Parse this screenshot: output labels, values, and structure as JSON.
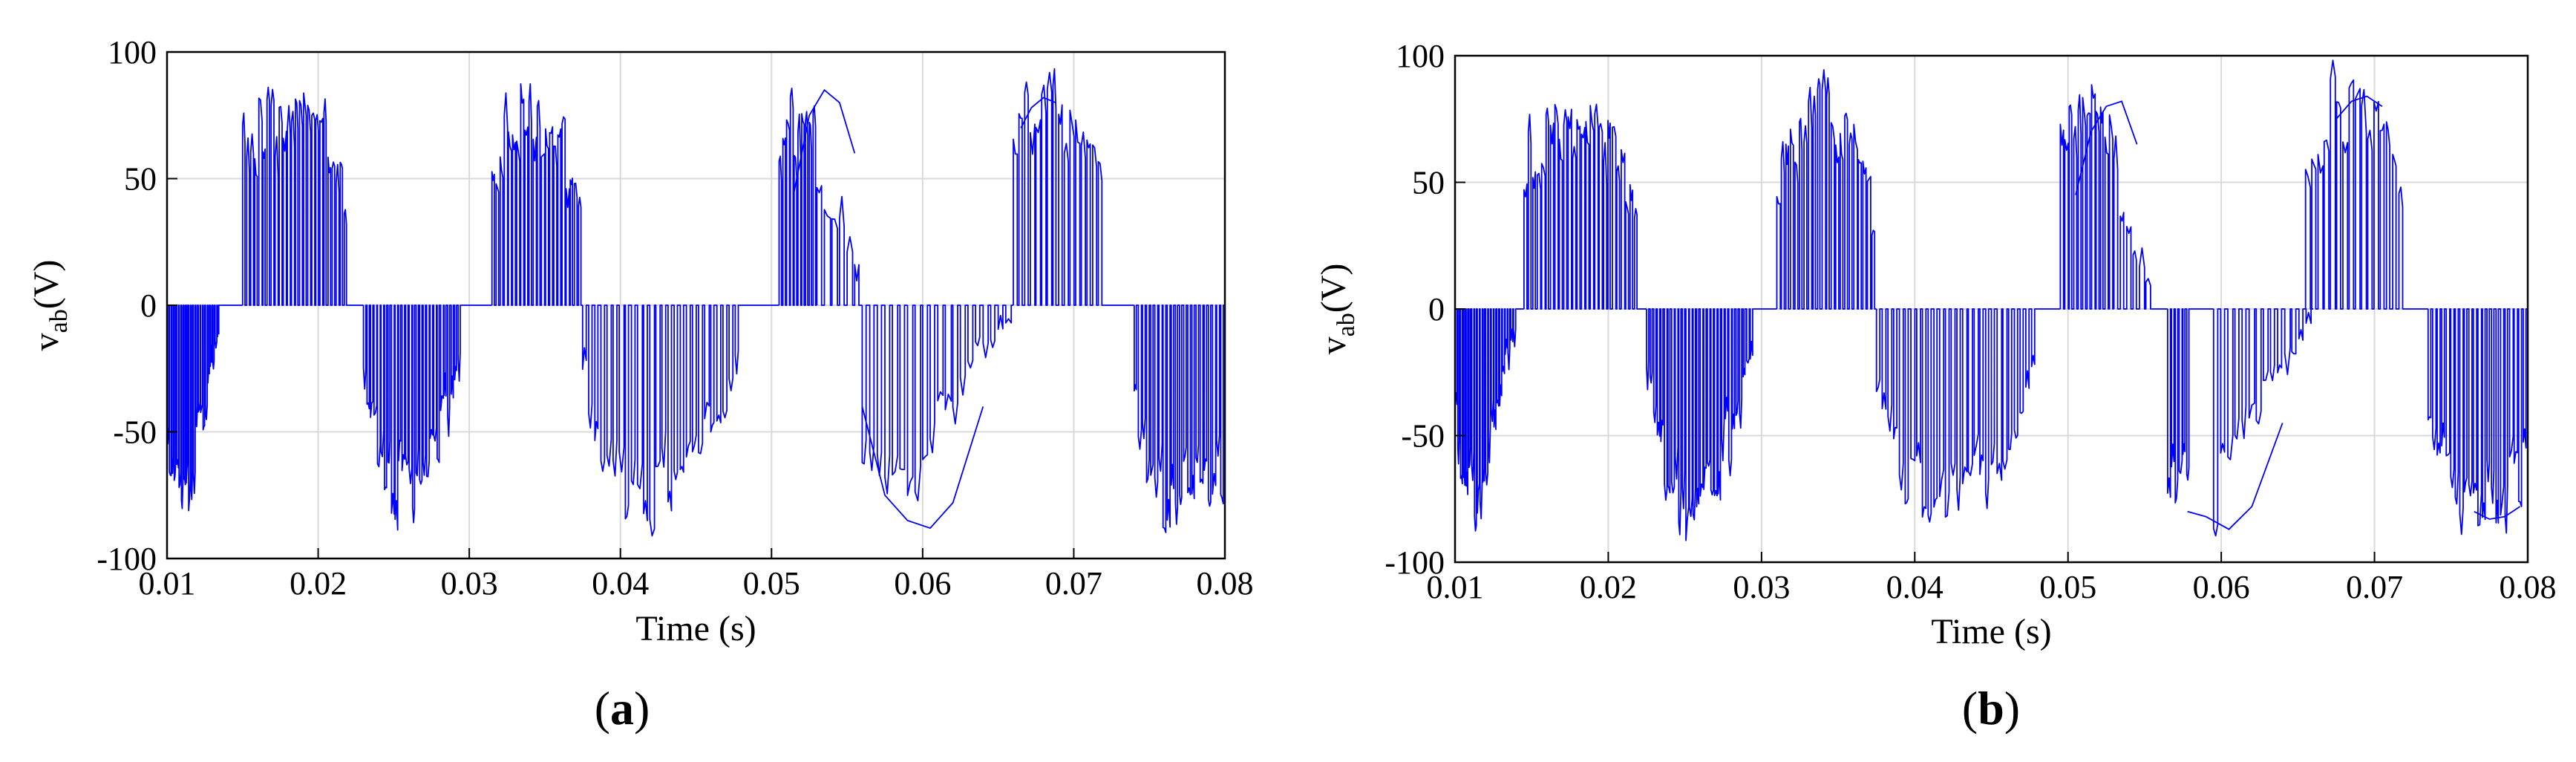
{
  "figure": {
    "panels": [
      {
        "label_open": "(",
        "label_letter": "a",
        "label_close": ")"
      },
      {
        "label_open": "(",
        "label_letter": "b",
        "label_close": ")"
      }
    ]
  },
  "chart_data": [
    {
      "type": "line",
      "panel": "a",
      "xlabel": "Time (s)",
      "ylabel_main": "v",
      "ylabel_sub": "ab",
      "ylabel_unit": "(V)",
      "xlim": [
        0.01,
        0.08
      ],
      "ylim": [
        -100,
        100
      ],
      "xticks": [
        "0.01",
        "0.02",
        "0.03",
        "0.04",
        "0.05",
        "0.06",
        "0.07",
        "0.08"
      ],
      "yticks": [
        "100",
        "50",
        "0",
        "-50",
        "-100"
      ],
      "grid": true,
      "line_color": "#0000ff",
      "series": [
        {
          "pulse_segments": [
            {
              "x": [
                0.01,
                0.0135
              ],
              "envelope": [
                -60,
                -85,
                -80,
                -60,
                -35,
                -10
              ],
              "polarity": "neg",
              "density": 22
            },
            {
              "x": [
                0.015,
                0.022
              ],
              "envelope": [
                75,
                80,
                82,
                80,
                72,
                45
              ],
              "polarity": "pos",
              "density": 26
            },
            {
              "x": [
                0.023,
                0.0295
              ],
              "envelope": [
                -30,
                -75,
                -85,
                -80,
                -55,
                -20
              ],
              "polarity": "neg",
              "density": 28
            },
            {
              "x": [
                0.0315,
                0.0375
              ],
              "envelope": [
                60,
                80,
                85,
                80,
                70,
                40
              ],
              "polarity": "pos",
              "density": 22
            },
            {
              "x": [
                0.0375,
                0.048
              ],
              "envelope": [
                -30,
                -80,
                -85,
                -75,
                -60,
                -20
              ],
              "polarity": "neg",
              "density": 26
            },
            {
              "x": [
                0.0505,
                0.053
              ],
              "envelope": [
                70,
                85,
                85
              ],
              "polarity": "pos",
              "density": 10
            },
            {
              "x": [
                0.053,
                0.056
              ],
              "envelope": [
                60,
                40,
                10
              ],
              "polarity": "pos",
              "density": 6
            },
            {
              "x": [
                0.056,
                0.059
              ],
              "envelope": [
                -60,
                -85
              ],
              "polarity": "neg",
              "density": 6
            },
            {
              "x": [
                0.059,
                0.066
              ],
              "envelope": [
                -80,
                -50,
                -20,
                -5
              ],
              "polarity": "neg",
              "density": 14
            },
            {
              "x": [
                0.066,
                0.072
              ],
              "envelope": [
                70,
                88,
                88,
                75,
                60
              ],
              "polarity": "pos",
              "density": 16
            },
            {
              "x": [
                0.074,
                0.08
              ],
              "envelope": [
                -40,
                -85,
                -90,
                -80,
                -70
              ],
              "polarity": "neg",
              "density": 22
            }
          ],
          "smooth_segments": [
            {
              "x": [
                0.0515,
                0.0525,
                0.0535,
                0.0545,
                0.0555
              ],
              "y": [
                45,
                75,
                85,
                80,
                60
              ]
            },
            {
              "x": [
                0.056,
                0.0575,
                0.059,
                0.0605,
                0.062,
                0.064
              ],
              "y": [
                -40,
                -75,
                -85,
                -88,
                -78,
                -40
              ]
            },
            {
              "x": [
                0.0665,
                0.0672,
                0.068,
                0.0688
              ],
              "y": [
                70,
                78,
                82,
                80
              ]
            }
          ]
        }
      ]
    },
    {
      "type": "line",
      "panel": "b",
      "xlabel": "Time (s)",
      "ylabel_main": "v",
      "ylabel_sub": "ab",
      "ylabel_unit": "(V)",
      "xlim": [
        0.01,
        0.08
      ],
      "ylim": [
        -100,
        100
      ],
      "xticks": [
        "0.01",
        "0.02",
        "0.03",
        "0.04",
        "0.05",
        "0.06",
        "0.07",
        "0.08"
      ],
      "yticks": [
        "100",
        "50",
        "0",
        "-50",
        "-100"
      ],
      "grid": true,
      "line_color": "#0000ff",
      "series": [
        {
          "pulse_segments": [
            {
              "x": [
                0.01,
                0.014
              ],
              "envelope": [
                -50,
                -85,
                -80,
                -55,
                -30,
                -5
              ],
              "polarity": "neg",
              "density": 22
            },
            {
              "x": [
                0.0145,
                0.022
              ],
              "envelope": [
                65,
                80,
                85,
                80,
                70,
                40
              ],
              "polarity": "pos",
              "density": 26
            },
            {
              "x": [
                0.0225,
                0.0295
              ],
              "envelope": [
                -25,
                -75,
                -90,
                -80,
                -55,
                -15
              ],
              "polarity": "neg",
              "density": 30
            },
            {
              "x": [
                0.031,
                0.0375
              ],
              "envelope": [
                55,
                80,
                85,
                82,
                70,
                35
              ],
              "polarity": "pos",
              "density": 22
            },
            {
              "x": [
                0.0375,
                0.048
              ],
              "envelope": [
                -30,
                -80,
                -88,
                -78,
                -60,
                -20
              ],
              "polarity": "neg",
              "density": 28
            },
            {
              "x": [
                0.0495,
                0.053
              ],
              "envelope": [
                70,
                85,
                85,
                80
              ],
              "polarity": "pos",
              "density": 12
            },
            {
              "x": [
                0.053,
                0.0555
              ],
              "envelope": [
                60,
                30,
                10
              ],
              "polarity": "pos",
              "density": 6
            },
            {
              "x": [
                0.0565,
                0.058
              ],
              "envelope": [
                -70,
                -80
              ],
              "polarity": "neg",
              "density": 6
            },
            {
              "x": [
                0.0595,
                0.066
              ],
              "envelope": [
                -85,
                -55,
                -25,
                -5
              ],
              "polarity": "neg",
              "density": 14
            },
            {
              "x": [
                0.0655,
                0.072
              ],
              "envelope": [
                70,
                88,
                88,
                78,
                60
              ],
              "polarity": "pos",
              "density": 16
            },
            {
              "x": [
                0.0735,
                0.08
              ],
              "envelope": [
                -40,
                -80,
                -85,
                -80,
                -70
              ],
              "polarity": "neg",
              "density": 22
            }
          ],
          "smooth_segments": [
            {
              "x": [
                0.0505,
                0.0515,
                0.0525,
                0.0535,
                0.0545
              ],
              "y": [
                45,
                70,
                80,
                82,
                65
              ]
            },
            {
              "x": [
                0.0578,
                0.059,
                0.0605,
                0.062,
                0.064
              ],
              "y": [
                -80,
                -82,
                -87,
                -78,
                -45
              ]
            },
            {
              "x": [
                0.0675,
                0.0685,
                0.0695,
                0.0705
              ],
              "y": [
                75,
                82,
                84,
                80
              ]
            },
            {
              "x": [
                0.0765,
                0.0775,
                0.0785,
                0.0795
              ],
              "y": [
                -80,
                -83,
                -82,
                -78
              ]
            }
          ]
        }
      ]
    }
  ]
}
